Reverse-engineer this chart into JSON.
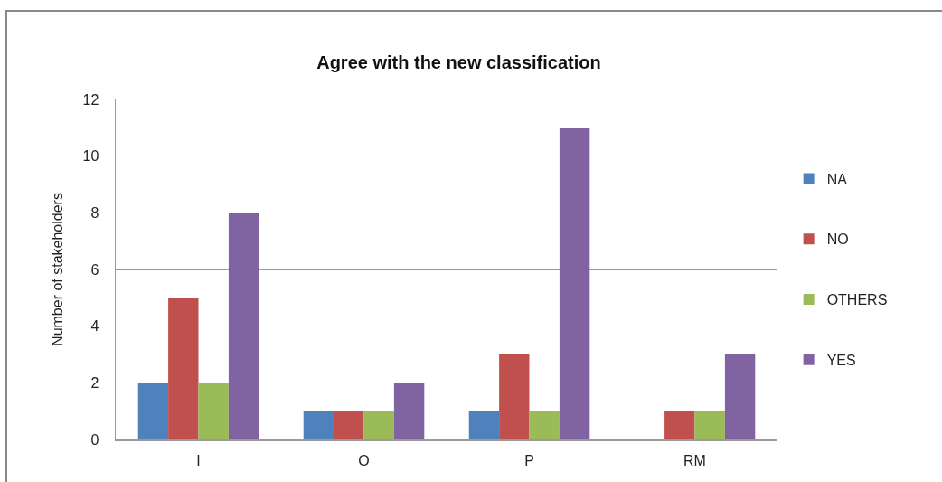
{
  "chart_data": {
    "type": "bar",
    "title": "Agree with the new classification",
    "ylabel": "Number of stakeholders",
    "categories": [
      "I",
      "O",
      "P",
      "RM"
    ],
    "series": [
      {
        "name": "NA",
        "color": "#4f81bd",
        "values": [
          2,
          1,
          1,
          0
        ]
      },
      {
        "name": "NO",
        "color": "#c0504d",
        "values": [
          5,
          1,
          3,
          1
        ]
      },
      {
        "name": "OTHERS",
        "color": "#9bbb59",
        "values": [
          2,
          1,
          1,
          1
        ]
      },
      {
        "name": "YES",
        "color": "#8064a2",
        "values": [
          8,
          2,
          11,
          3
        ]
      }
    ],
    "ylim": [
      0,
      12
    ],
    "yticks": [
      0,
      2,
      4,
      6,
      8,
      10,
      12
    ],
    "grid": "y",
    "legend": "right"
  }
}
